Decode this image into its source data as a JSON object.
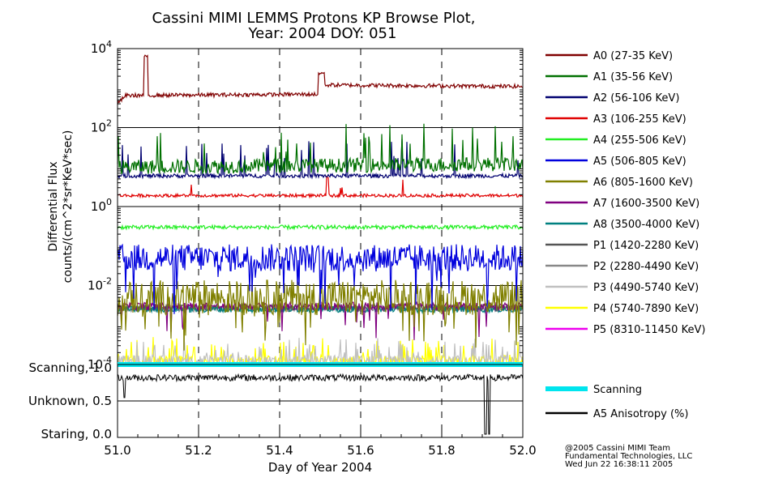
{
  "title_line1": "Cassini MIMI LEMMS Protons KP Browse Plot,",
  "title_line2": "Year: 2004 DOY: 051",
  "chart_data": [
    {
      "type": "line",
      "panel": "flux",
      "ylabel_line1": "Differential Flux",
      "ylabel_line2": "counts/(cm^2*sr*KeV*sec)",
      "yscale": "log",
      "ylim": [
        0.0001,
        10000
      ],
      "y_ticks": [
        {
          "base": "10",
          "exp": "4",
          "value": 10000
        },
        {
          "base": "10",
          "exp": "2",
          "value": 100
        },
        {
          "base": "10",
          "exp": "0",
          "value": 1
        },
        {
          "base": "10",
          "exp": "-2",
          "value": 0.01
        },
        {
          "base": "10",
          "exp": "-4",
          "value": 0.0001
        }
      ],
      "xlim": [
        51.0,
        52.0
      ],
      "series": [
        {
          "name": "A0 (27-35 KeV)",
          "color": "#800000",
          "typical": 700,
          "spread": 0.05,
          "spike_prob": 0.0,
          "spike_max": 0.3,
          "profile": [
            [
              51.0,
              400
            ],
            [
              51.02,
              650
            ],
            [
              51.5,
              700
            ],
            [
              51.505,
              1200
            ],
            [
              52.0,
              1100
            ]
          ],
          "events": [
            [
              51.065,
              51.075,
              7000
            ],
            [
              51.495,
              51.51,
              2500
            ]
          ]
        },
        {
          "name": "A1 (35-56 KeV)",
          "color": "#007000",
          "typical": 12,
          "spread": 0.18,
          "spike_prob": 0.06,
          "spike_max": 1.0,
          "profile": [
            [
              51.0,
              10
            ],
            [
              52.0,
              12
            ]
          ],
          "events": []
        },
        {
          "name": "A2 (56-106 KeV)",
          "color": "#000070",
          "typical": 6,
          "spread": 0.05,
          "spike_prob": 0.05,
          "spike_max": 0.9,
          "profile": [
            [
              51.0,
              6
            ],
            [
              52.0,
              6
            ]
          ],
          "events": []
        },
        {
          "name": "A3 (106-255 KeV)",
          "color": "#e00000",
          "typical": 1.9,
          "spread": 0.04,
          "spike_prob": 0.01,
          "spike_max": 0.4,
          "profile": [
            [
              51.0,
              1.9
            ],
            [
              52.0,
              1.9
            ]
          ],
          "events": [
            [
              51.515,
              51.52,
              6
            ]
          ]
        },
        {
          "name": "A4 (255-506 KeV)",
          "color": "#22ee22",
          "typical": 0.3,
          "spread": 0.05,
          "spike_prob": 0.0,
          "spike_max": 0.2,
          "profile": [
            [
              51.0,
              0.3
            ],
            [
              52.0,
              0.3
            ]
          ],
          "events": []
        },
        {
          "name": "A5 (506-805 KeV)",
          "color": "#0000dd",
          "typical": 0.05,
          "spread": 0.35,
          "spike_prob": 0.05,
          "spike_max": -1.3,
          "profile": [
            [
              51.0,
              0.05
            ],
            [
              52.0,
              0.05
            ]
          ],
          "events": []
        },
        {
          "name": "A6 (805-1600 KeV)",
          "color": "#808000",
          "typical": 0.005,
          "spread": 0.45,
          "spike_prob": 0.06,
          "spike_max": -1.2,
          "profile": [
            [
              51.0,
              0.005
            ],
            [
              52.0,
              0.005
            ]
          ],
          "events": []
        },
        {
          "name": "A7 (1600-3500 KeV)",
          "color": "#800080",
          "typical": 0.003,
          "spread": 0.1,
          "spike_prob": 0.03,
          "spike_max": -0.8,
          "profile": [
            [
              51.0,
              0.003
            ],
            [
              52.0,
              0.003
            ]
          ],
          "events": []
        },
        {
          "name": "A8 (3500-4000 KeV)",
          "color": "#008080",
          "typical": 0.0025,
          "spread": 0.08,
          "spike_prob": 0.0,
          "spike_max": 0.0,
          "profile": [
            [
              51.0,
              0.0025
            ],
            [
              52.0,
              0.0025
            ]
          ],
          "events": []
        },
        {
          "name": "P1 (1420-2280 KeV)",
          "color": "#555555",
          "typical": 0.0028,
          "spread": 0.08,
          "spike_prob": 0.0,
          "spike_max": 0.0,
          "profile": [
            [
              51.0,
              0.0028
            ],
            [
              52.0,
              0.0028
            ]
          ],
          "events": []
        },
        {
          "name": "P2 (2280-4490 KeV)",
          "color": "#888888",
          "typical": 0.0026,
          "spread": 0.08,
          "spike_prob": 0.0,
          "spike_max": 0.0,
          "profile": [
            [
              51.0,
              0.0026
            ],
            [
              52.0,
              0.0026
            ]
          ],
          "events": []
        },
        {
          "name": "P3 (4490-5740 KeV)",
          "color": "#c0c0c0",
          "typical": 0.00012,
          "spread": 0.15,
          "spike_prob": 0.12,
          "spike_max": 0.5,
          "profile": [
            [
              51.0,
              0.00012
            ],
            [
              52.0,
              0.00012
            ]
          ],
          "events": []
        },
        {
          "name": "P4 (5740-7890 KeV)",
          "color": "#ffff00",
          "typical": 0.00012,
          "spread": 0.15,
          "spike_prob": 0.12,
          "spike_max": 0.5,
          "profile": [
            [
              51.0,
              0.00012
            ],
            [
              52.0,
              0.00012
            ]
          ],
          "events": []
        },
        {
          "name": "P5 (8310-11450 KeV)",
          "color": "#ee00ee",
          "typical": 0.0001,
          "spread": 0.0,
          "spike_prob": 0.0,
          "spike_max": 0.0,
          "profile": [
            [
              51.0,
              0.0001
            ],
            [
              52.0,
              0.0001
            ]
          ],
          "events": []
        }
      ]
    },
    {
      "type": "line",
      "panel": "mode",
      "y_ticks": [
        {
          "label": "Scanning, 1.0",
          "value": 1.0
        },
        {
          "label": "Unknown, 0.5",
          "value": 0.5
        },
        {
          "label": "Staring, 0.0",
          "value": 0.0
        }
      ],
      "ylim": [
        0.0,
        1.0
      ],
      "xlim": [
        51.0,
        52.0
      ],
      "xlabel": "Day of Year 2004",
      "x_ticks": [
        "51.0",
        "51.2",
        "51.4",
        "51.6",
        "51.8",
        "52.0"
      ],
      "x_tick_values": [
        51.0,
        51.2,
        51.4,
        51.6,
        51.8,
        52.0
      ],
      "series": [
        {
          "name": "Scanning",
          "color": "#00e5ee",
          "value": 1.0
        },
        {
          "name": "A5 Anisotropy (%)",
          "color": "#000000",
          "typical": 0.85,
          "spread": 0.05,
          "dropouts": [
            [
              51.015,
              51.018,
              0.55
            ],
            [
              51.905,
              51.91,
              0.0
            ],
            [
              51.915,
              51.918,
              0.0
            ]
          ]
        }
      ]
    }
  ],
  "credits": {
    "line1": "@2005 Cassini MIMI Team",
    "line2": "Fundamental Technologies, LLC",
    "line3": "Wed Jun 22 16:38:11 2005"
  }
}
